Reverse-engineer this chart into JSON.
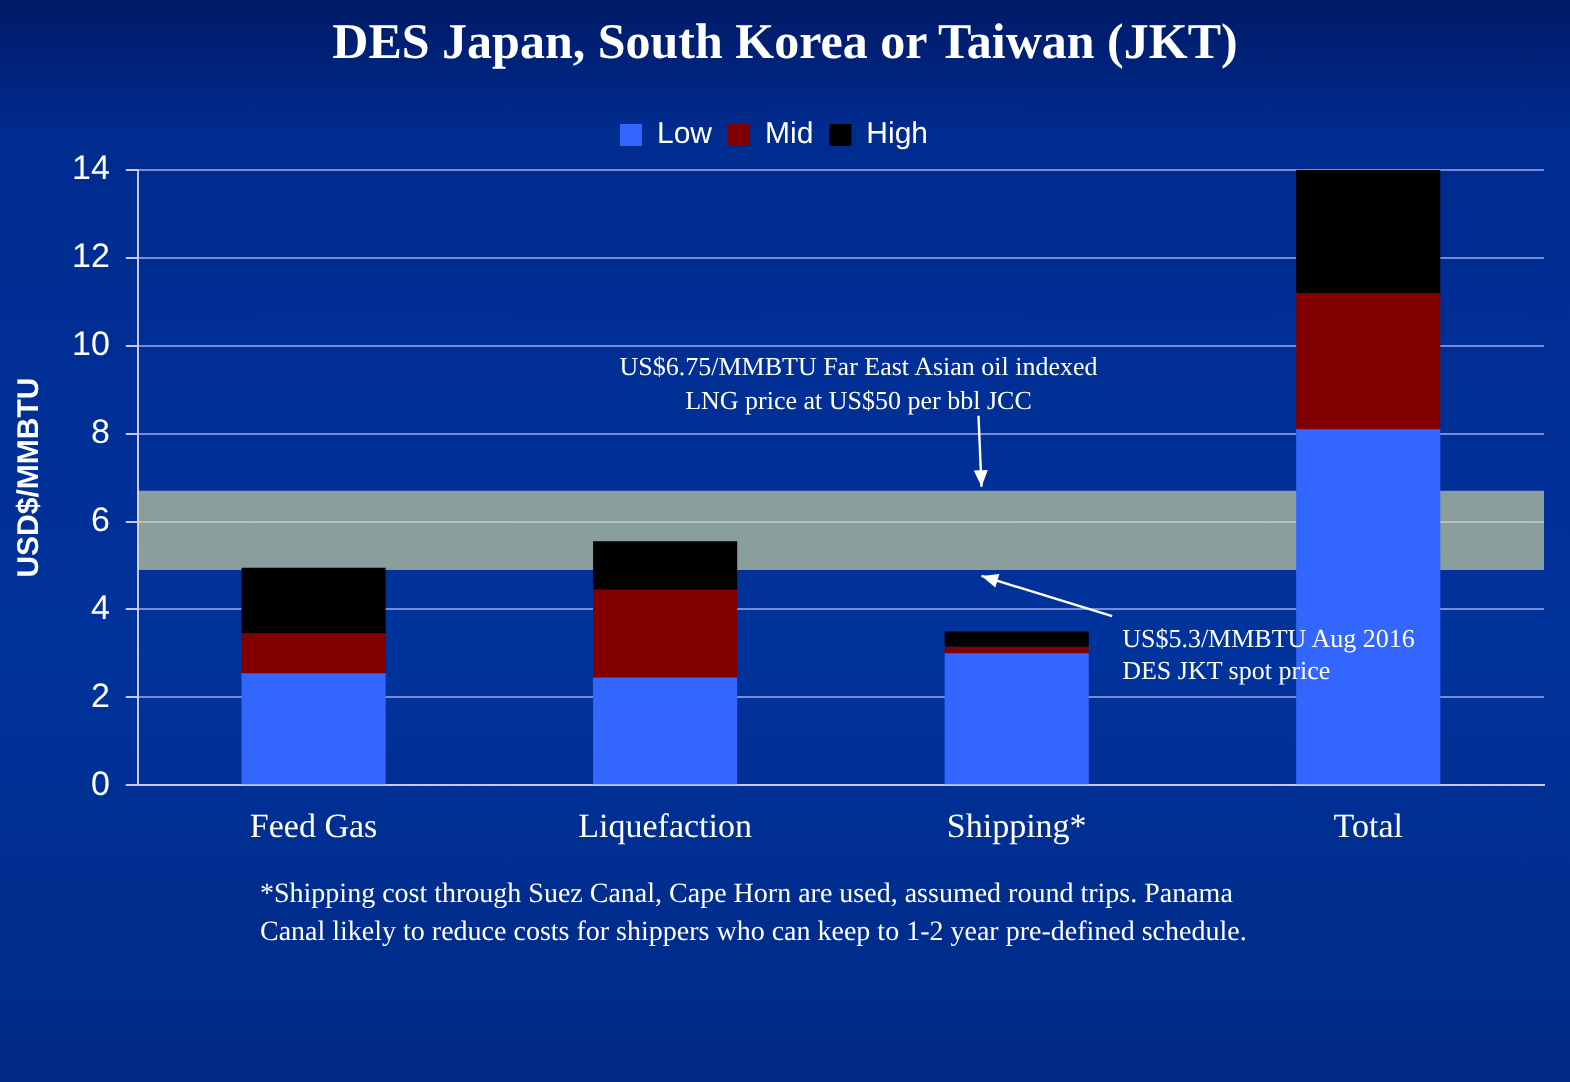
{
  "chart_data": {
    "type": "bar",
    "title": "DES Japan, South Korea or Taiwan (JKT)",
    "ylabel": "USD$/MMBTU",
    "categories": [
      "Feed Gas",
      "Liquefaction",
      "Shipping*",
      "Total"
    ],
    "series": [
      {
        "name": "Low",
        "color": "#3366ff",
        "values": [
          2.55,
          2.45,
          3.0,
          8.1
        ]
      },
      {
        "name": "Mid",
        "color": "#800000",
        "values": [
          0.9,
          2.0,
          0.15,
          3.1
        ]
      },
      {
        "name": "High",
        "color": "#000000",
        "values": [
          1.5,
          1.1,
          0.35,
          2.8
        ]
      }
    ],
    "stacked": true,
    "ylim": [
      0,
      14
    ],
    "yticks": [
      0,
      2,
      4,
      6,
      8,
      10,
      12,
      14
    ],
    "grid": "y",
    "legend": "top",
    "bands": [
      {
        "axis": "y",
        "from": 4.9,
        "to": 6.7,
        "color": "#e6e6a0"
      }
    ],
    "annotations": [
      {
        "text": "US$6.75/MMBTU Far East Asian oil indexed LNG price at US$50 per bbl JCC",
        "y": 6.7
      },
      {
        "text": "US$5.3/MMBTU Aug 2016 DES JKT spot price",
        "y": 4.9
      },
      "*Shipping cost through Suez Canal, Cape Horn are used, assumed round trips. Panama Canal likely to reduce costs for shippers who can keep to 1-2 year pre-defined schedule."
    ]
  }
}
